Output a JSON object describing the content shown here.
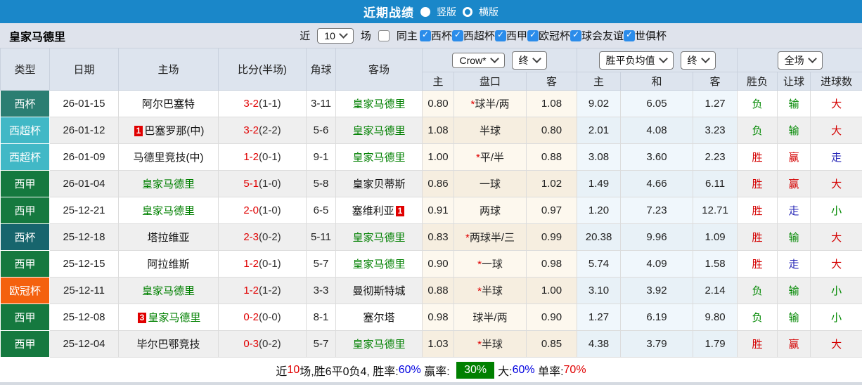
{
  "topbar": {
    "title": "近期战绩",
    "radio_vertical": "竖版",
    "radio_horizontal": "横版"
  },
  "filter": {
    "team": "皇家马德里",
    "near_label": "近",
    "count_value": "10",
    "games_label": "场",
    "same_home_label": "同主",
    "leagues": [
      "西杯",
      "西超杯",
      "西甲",
      "欧冠杯",
      "球会友谊",
      "世俱杯"
    ]
  },
  "header": {
    "type": "类型",
    "date": "日期",
    "home": "主场",
    "score": "比分(半场)",
    "corner": "角球",
    "away": "客场",
    "odds_source": "Crow*",
    "final_label": "终",
    "europe_source": "胜平负均值",
    "scope": "全场",
    "sub": [
      "主",
      "盘口",
      "客",
      "主",
      "和",
      "客",
      "胜负",
      "让球",
      "进球数"
    ]
  },
  "table": {
    "rows": [
      {
        "type": "西杯",
        "type_color": "#2b7e72",
        "date": "26-01-15",
        "home": {
          "name": "阿尔巴塞特",
          "green": false
        },
        "score": "3-2",
        "half": "(1-1)",
        "corner": "3-11",
        "away": {
          "name": "皇家马德里",
          "green": true
        },
        "odds": [
          "0.80",
          "*球半/两",
          "1.08"
        ],
        "euro": [
          "9.02",
          "6.05",
          "1.27"
        ],
        "res": {
          "t": "负",
          "c": "green"
        },
        "ah": {
          "t": "输",
          "c": "green"
        },
        "ou": {
          "t": "大",
          "c": "red"
        }
      },
      {
        "type": "西超杯",
        "type_color": "#41b8c6",
        "date": "26-01-12",
        "home": {
          "name": "巴塞罗那(中)",
          "green": false,
          "badge": "1",
          "badge_pos": "before"
        },
        "score": "3-2",
        "half": "(2-2)",
        "corner": "5-6",
        "away": {
          "name": "皇家马德里",
          "green": true
        },
        "odds": [
          "1.08",
          "半球",
          "0.80"
        ],
        "euro": [
          "2.01",
          "4.08",
          "3.23"
        ],
        "res": {
          "t": "负",
          "c": "green"
        },
        "ah": {
          "t": "输",
          "c": "green"
        },
        "ou": {
          "t": "大",
          "c": "red"
        }
      },
      {
        "type": "西超杯",
        "type_color": "#41b8c6",
        "date": "26-01-09",
        "home": {
          "name": "马德里竞技(中)",
          "green": false
        },
        "score": "1-2",
        "half": "(0-1)",
        "corner": "9-1",
        "away": {
          "name": "皇家马德里",
          "green": true
        },
        "odds": [
          "1.00",
          "*平/半",
          "0.88"
        ],
        "euro": [
          "3.08",
          "3.60",
          "2.23"
        ],
        "res": {
          "t": "胜",
          "c": "red"
        },
        "ah": {
          "t": "赢",
          "c": "red"
        },
        "ou": {
          "t": "走",
          "c": "blue"
        }
      },
      {
        "type": "西甲",
        "type_color": "#15793f",
        "date": "26-01-04",
        "home": {
          "name": "皇家马德里",
          "green": true
        },
        "score": "5-1",
        "half": "(1-0)",
        "corner": "5-8",
        "away": {
          "name": "皇家贝蒂斯",
          "green": false
        },
        "odds": [
          "0.86",
          "一球",
          "1.02"
        ],
        "euro": [
          "1.49",
          "4.66",
          "6.11"
        ],
        "res": {
          "t": "胜",
          "c": "red"
        },
        "ah": {
          "t": "赢",
          "c": "red"
        },
        "ou": {
          "t": "大",
          "c": "red"
        }
      },
      {
        "type": "西甲",
        "type_color": "#15793f",
        "date": "25-12-21",
        "home": {
          "name": "皇家马德里",
          "green": true
        },
        "score": "2-0",
        "half": "(1-0)",
        "corner": "6-5",
        "away": {
          "name": "塞维利亚",
          "green": false,
          "badge": "1",
          "badge_pos": "after"
        },
        "odds": [
          "0.91",
          "两球",
          "0.97"
        ],
        "euro": [
          "1.20",
          "7.23",
          "12.71"
        ],
        "res": {
          "t": "胜",
          "c": "red"
        },
        "ah": {
          "t": "走",
          "c": "blue"
        },
        "ou": {
          "t": "小",
          "c": "green"
        }
      },
      {
        "type": "西杯",
        "type_color": "#17656d",
        "date": "25-12-18",
        "home": {
          "name": "塔拉维亚",
          "green": false
        },
        "score": "2-3",
        "half": "(0-2)",
        "corner": "5-11",
        "away": {
          "name": "皇家马德里",
          "green": true
        },
        "odds": [
          "0.83",
          "*两球半/三",
          "0.99"
        ],
        "euro": [
          "20.38",
          "9.96",
          "1.09"
        ],
        "res": {
          "t": "胜",
          "c": "red"
        },
        "ah": {
          "t": "输",
          "c": "green"
        },
        "ou": {
          "t": "大",
          "c": "red"
        }
      },
      {
        "type": "西甲",
        "type_color": "#15793f",
        "date": "25-12-15",
        "home": {
          "name": "阿拉维斯",
          "green": false
        },
        "score": "1-2",
        "half": "(0-1)",
        "corner": "5-7",
        "away": {
          "name": "皇家马德里",
          "green": true
        },
        "odds": [
          "0.90",
          "*一球",
          "0.98"
        ],
        "euro": [
          "5.74",
          "4.09",
          "1.58"
        ],
        "res": {
          "t": "胜",
          "c": "red"
        },
        "ah": {
          "t": "走",
          "c": "blue"
        },
        "ou": {
          "t": "大",
          "c": "red"
        }
      },
      {
        "type": "欧冠杯",
        "type_color": "#f4610e",
        "date": "25-12-11",
        "home": {
          "name": "皇家马德里",
          "green": true
        },
        "score": "1-2",
        "half": "(1-2)",
        "corner": "3-3",
        "away": {
          "name": "曼彻斯特城",
          "green": false
        },
        "odds": [
          "0.88",
          "*半球",
          "1.00"
        ],
        "euro": [
          "3.10",
          "3.92",
          "2.14"
        ],
        "res": {
          "t": "负",
          "c": "green"
        },
        "ah": {
          "t": "输",
          "c": "green"
        },
        "ou": {
          "t": "小",
          "c": "green"
        }
      },
      {
        "type": "西甲",
        "type_color": "#15793f",
        "date": "25-12-08",
        "home": {
          "name": "皇家马德里",
          "green": true,
          "badge": "3",
          "badge_pos": "before"
        },
        "score": "0-2",
        "half": "(0-0)",
        "corner": "8-1",
        "away": {
          "name": "塞尔塔",
          "green": false
        },
        "odds": [
          "0.98",
          "球半/两",
          "0.90"
        ],
        "euro": [
          "1.27",
          "6.19",
          "9.80"
        ],
        "res": {
          "t": "负",
          "c": "green"
        },
        "ah": {
          "t": "输",
          "c": "green"
        },
        "ou": {
          "t": "小",
          "c": "green"
        }
      },
      {
        "type": "西甲",
        "type_color": "#15793f",
        "date": "25-12-04",
        "home": {
          "name": "毕尔巴鄂竞技",
          "green": false
        },
        "score": "0-3",
        "half": "(0-2)",
        "corner": "5-7",
        "away": {
          "name": "皇家马德里",
          "green": true
        },
        "odds": [
          "1.03",
          "*半球",
          "0.85"
        ],
        "euro": [
          "4.38",
          "3.79",
          "1.79"
        ],
        "res": {
          "t": "胜",
          "c": "red"
        },
        "ah": {
          "t": "赢",
          "c": "red"
        },
        "ou": {
          "t": "大",
          "c": "red"
        }
      }
    ]
  },
  "summary": {
    "near_label": "近",
    "count": "10",
    "record": "场,胜6平0负4, ",
    "winrate_label": "胜率:",
    "winrate_value": "60%",
    "oddswin_label": " 赢率: ",
    "oddswin_value": "30%",
    "big_label": "大:",
    "big_value": "60%",
    "single_label": " 单率:",
    "single_value": "70%"
  },
  "colors": {
    "topbar_blue": "#1a87c9",
    "checkbox_blue": "#2b8cea",
    "score_red": "#e00000",
    "team_green": "#008000",
    "result_red": "#d40000",
    "result_green": "#008800",
    "result_blue": "#2a2ab8",
    "summary_box_green": "#008000"
  }
}
